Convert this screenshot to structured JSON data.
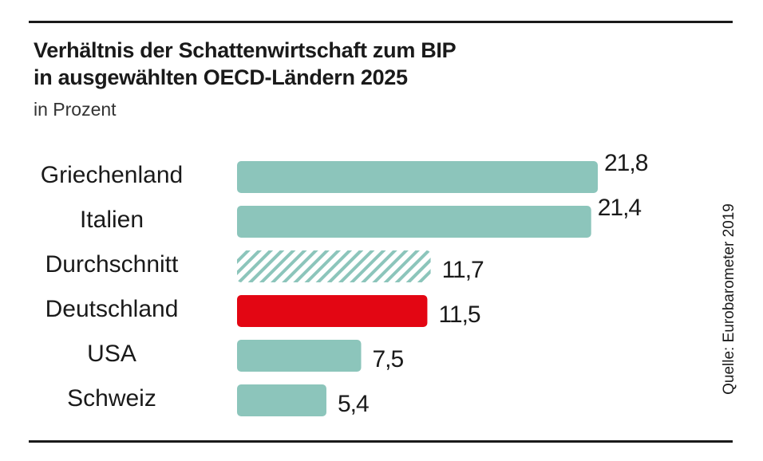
{
  "title_line1": "Verhältnis der Schattenwirtschaft zum BIP",
  "title_line2": "in ausgewählten OECD-Ländern  2025",
  "subtitle": "in Prozent",
  "source": "Quelle: Eurobarometer 2019",
  "chart_data": {
    "type": "bar",
    "orientation": "horizontal",
    "title": "Verhältnis der Schattenwirtschaft zum BIP in ausgewählten OECD-Ländern  2025",
    "subtitle": "in Prozent",
    "categories": [
      "Griechenland",
      "Italien",
      "Durchschnitt",
      "Deutschland",
      "USA",
      "Schweiz"
    ],
    "values": [
      21.8,
      21.4,
      11.7,
      11.5,
      7.5,
      5.4
    ],
    "value_labels": [
      "21,8",
      "21,4",
      "11,7",
      "11,5",
      "7,5",
      "5,4"
    ],
    "styles": [
      "solid",
      "solid",
      "hatched",
      "highlight",
      "solid",
      "solid"
    ],
    "colors": {
      "default": "#8cc5bb",
      "highlight": "#e30613",
      "hatched": "#8cc5bb"
    },
    "xlim": [
      0,
      21.8
    ],
    "grid": false
  }
}
